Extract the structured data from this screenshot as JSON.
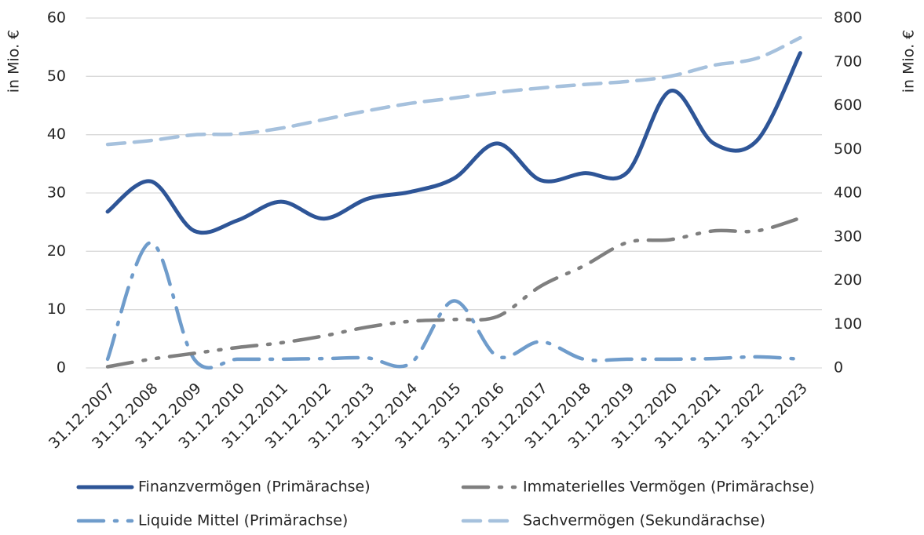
{
  "chart_data": {
    "type": "line",
    "y_label": "in Mio. €",
    "y2_label": "in Mio. €",
    "categories": [
      "31.12.2007",
      "31.12.2008",
      "31.12.2009",
      "31.12.2010",
      "31.12.2011",
      "31.12.2012",
      "31.12.2013",
      "31.12.2014",
      "31.12.2015",
      "31.12.2016",
      "31.12.2017",
      "31.12.2018",
      "31.12.2019",
      "31.12.2020",
      "31.12.2021",
      "31.12.2022",
      "31.12.2023"
    ],
    "series": [
      {
        "name": "Finanzvermögen (Primärachse)",
        "color": "#2e5597",
        "dash": "solid",
        "values": [
          26.8,
          32,
          23.5,
          25.3,
          28.5,
          25.6,
          29,
          30.2,
          32.5,
          38.5,
          32.2,
          33.4,
          33.5,
          47.5,
          38.5,
          39,
          54
        ]
      },
      {
        "name": "Immaterielles Vermögen (Primärachse)",
        "color": "#7f7f7f",
        "dash": "long-dash-dot-dot",
        "values": [
          0.2,
          1.5,
          2.5,
          3.5,
          4.3,
          5.5,
          7,
          8,
          8.3,
          8.8,
          14,
          17.5,
          21.5,
          22,
          23.5,
          23.5,
          25.7
        ]
      },
      {
        "name": "Liquide Mittel (Primärachse)",
        "color": "#6f9ccb",
        "dash": "long-dash-dot",
        "values": [
          1.5,
          21.5,
          1.5,
          1.5,
          1.5,
          1.6,
          1.7,
          0.8,
          11.5,
          2,
          4.5,
          1.5,
          1.5,
          1.5,
          1.6,
          1.9,
          1.5
        ]
      },
      {
        "name": "Sachvermögen (Sekundärachse)",
        "color": "#a6c1dd",
        "dash": "dash",
        "axis": "y2",
        "values": [
          511,
          520,
          533,
          535,
          548,
          568,
          588,
          605,
          617,
          630,
          640,
          648,
          655,
          667,
          692,
          708,
          755
        ]
      }
    ],
    "ylim": [
      0,
      60
    ],
    "yticks": [
      0,
      10,
      20,
      30,
      40,
      50,
      60
    ],
    "y2lim": [
      0,
      800
    ],
    "y2ticks": [
      0,
      100,
      200,
      300,
      400,
      500,
      600,
      700,
      800
    ],
    "grid": true,
    "smooth": true,
    "legend": "bottom"
  }
}
